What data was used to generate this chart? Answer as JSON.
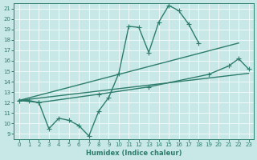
{
  "xlabel": "Humidex (Indice chaleur)",
  "background_color": "#c8e8e8",
  "line_color": "#2e7d6b",
  "xlim": [
    -0.5,
    23.5
  ],
  "ylim": [
    8.5,
    21.5
  ],
  "yticks": [
    9,
    10,
    11,
    12,
    13,
    14,
    15,
    16,
    17,
    18,
    19,
    20,
    21
  ],
  "xticks": [
    0,
    1,
    2,
    3,
    4,
    5,
    6,
    7,
    8,
    9,
    10,
    11,
    12,
    13,
    14,
    15,
    16,
    17,
    18,
    19,
    20,
    21,
    22,
    23
  ],
  "series": [
    {
      "x": [
        0,
        1,
        2,
        3,
        4,
        5,
        6,
        7,
        8,
        9,
        10,
        11,
        12,
        13,
        14,
        15,
        16,
        17,
        18
      ],
      "y": [
        12.2,
        12.2,
        12.0,
        9.5,
        10.5,
        10.3,
        9.8,
        8.8,
        11.2,
        12.5,
        14.8,
        19.3,
        19.2,
        16.8,
        19.7,
        21.3,
        20.8,
        19.5,
        17.7
      ],
      "marker": "+",
      "markersize": 4,
      "linewidth": 1.0
    },
    {
      "x": [
        0,
        22
      ],
      "y": [
        12.2,
        17.7
      ],
      "marker": null,
      "markersize": 0,
      "linewidth": 1.0
    },
    {
      "x": [
        0,
        2,
        8,
        13,
        19,
        21,
        22,
        23
      ],
      "y": [
        12.2,
        12.0,
        12.8,
        13.5,
        14.7,
        15.5,
        16.2,
        15.2
      ],
      "marker": "+",
      "markersize": 4,
      "linewidth": 1.0
    },
    {
      "x": [
        0,
        23
      ],
      "y": [
        12.2,
        14.8
      ],
      "marker": null,
      "markersize": 0,
      "linewidth": 1.0
    }
  ]
}
